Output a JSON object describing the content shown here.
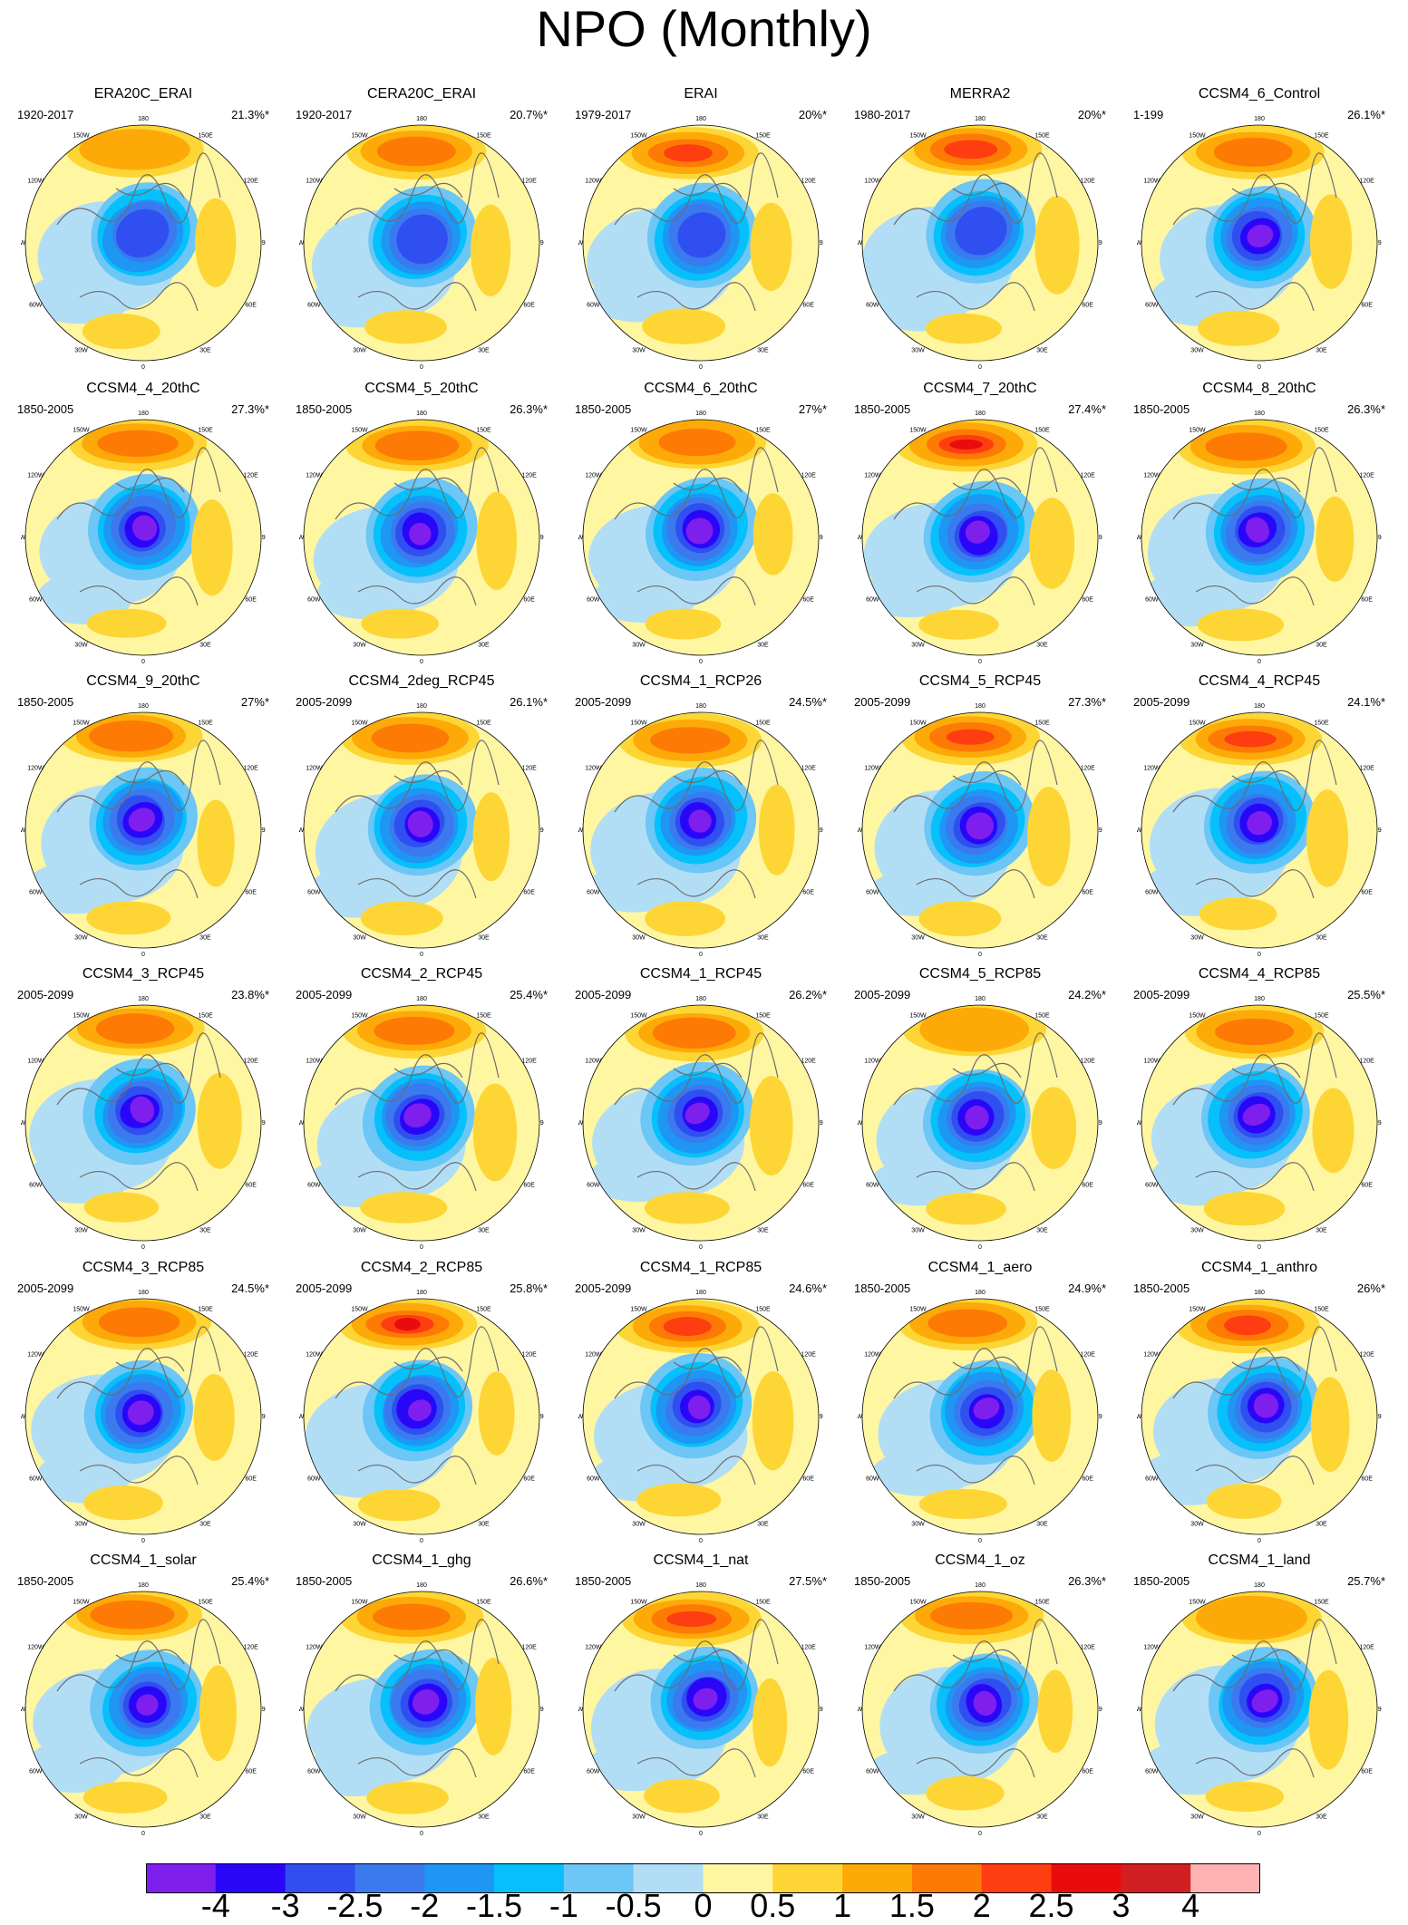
{
  "title": "NPO (Monthly)",
  "lon_labels": [
    "180",
    "150E",
    "120E",
    "90E",
    "60E",
    "30E",
    "0",
    "30W",
    "60W",
    "90W",
    "120W",
    "150W"
  ],
  "panels": [
    {
      "name": "ERA20C_ERAI",
      "period": "1920-2017",
      "pct": "21.3%*"
    },
    {
      "name": "CERA20C_ERAI",
      "period": "1920-2017",
      "pct": "20.7%*"
    },
    {
      "name": "ERAI",
      "period": "1979-2017",
      "pct": "20%*"
    },
    {
      "name": "MERRA2",
      "period": "1980-2017",
      "pct": "20%*"
    },
    {
      "name": "CCSM4_6_Control",
      "period": "1-199",
      "pct": "26.1%*"
    },
    {
      "name": "CCSM4_4_20thC",
      "period": "1850-2005",
      "pct": "27.3%*"
    },
    {
      "name": "CCSM4_5_20thC",
      "period": "1850-2005",
      "pct": "26.3%*"
    },
    {
      "name": "CCSM4_6_20thC",
      "period": "1850-2005",
      "pct": "27%*"
    },
    {
      "name": "CCSM4_7_20thC",
      "period": "1850-2005",
      "pct": "27.4%*"
    },
    {
      "name": "CCSM4_8_20thC",
      "period": "1850-2005",
      "pct": "26.3%*"
    },
    {
      "name": "CCSM4_9_20thC",
      "period": "1850-2005",
      "pct": "27%*"
    },
    {
      "name": "CCSM4_2deg_RCP45",
      "period": "2005-2099",
      "pct": "26.1%*"
    },
    {
      "name": "CCSM4_1_RCP26",
      "period": "2005-2099",
      "pct": "24.5%*"
    },
    {
      "name": "CCSM4_5_RCP45",
      "period": "2005-2099",
      "pct": "27.3%*"
    },
    {
      "name": "CCSM4_4_RCP45",
      "period": "2005-2099",
      "pct": "24.1%*"
    },
    {
      "name": "CCSM4_3_RCP45",
      "period": "2005-2099",
      "pct": "23.8%*"
    },
    {
      "name": "CCSM4_2_RCP45",
      "period": "2005-2099",
      "pct": "25.4%*"
    },
    {
      "name": "CCSM4_1_RCP45",
      "period": "2005-2099",
      "pct": "26.2%*"
    },
    {
      "name": "CCSM4_5_RCP85",
      "period": "2005-2099",
      "pct": "24.2%*"
    },
    {
      "name": "CCSM4_4_RCP85",
      "period": "2005-2099",
      "pct": "25.5%*"
    },
    {
      "name": "CCSM4_3_RCP85",
      "period": "2005-2099",
      "pct": "24.5%*"
    },
    {
      "name": "CCSM4_2_RCP85",
      "period": "2005-2099",
      "pct": "25.8%*"
    },
    {
      "name": "CCSM4_1_RCP85",
      "period": "2005-2099",
      "pct": "24.6%*"
    },
    {
      "name": "CCSM4_1_aero",
      "period": "1850-2005",
      "pct": "24.9%*"
    },
    {
      "name": "CCSM4_1_anthro",
      "period": "1850-2005",
      "pct": "26%*"
    },
    {
      "name": "CCSM4_1_solar",
      "period": "1850-2005",
      "pct": "25.4%*"
    },
    {
      "name": "CCSM4_1_ghg",
      "period": "1850-2005",
      "pct": "26.6%*"
    },
    {
      "name": "CCSM4_1_nat",
      "period": "1850-2005",
      "pct": "27.5%*"
    },
    {
      "name": "CCSM4_1_oz",
      "period": "1850-2005",
      "pct": "26.3%*"
    },
    {
      "name": "CCSM4_1_land",
      "period": "1850-2005",
      "pct": "25.7%*"
    }
  ],
  "colorbar": {
    "colors": [
      "#7f1fee",
      "#2a06f9",
      "#2f4ff0",
      "#3b79ef",
      "#1e96f4",
      "#05c0fa",
      "#6cc6f6",
      "#b2def5",
      "#fff6a2",
      "#fdd635",
      "#fdaa08",
      "#fd7b04",
      "#fe3e10",
      "#ea0c0c",
      "#d21f22",
      "#ffb2b2"
    ],
    "labels": [
      "-4",
      "-3",
      "-2.5",
      "-2",
      "-1.5",
      "-1",
      "-0.5",
      "0",
      "0.5",
      "1",
      "1.5",
      "2",
      "2.5",
      "3",
      "4"
    ]
  },
  "chart_data": {
    "type": "heatmap",
    "title": "NPO (Monthly)",
    "projection": "polar stereographic, Northern Hemisphere",
    "levels": [
      -4,
      -3,
      -2.5,
      -2,
      -1.5,
      -1,
      -0.5,
      0,
      0.5,
      1,
      1.5,
      2,
      2.5,
      3,
      4
    ],
    "panels_shown": 30,
    "layout": "6 rows x 5 columns"
  }
}
